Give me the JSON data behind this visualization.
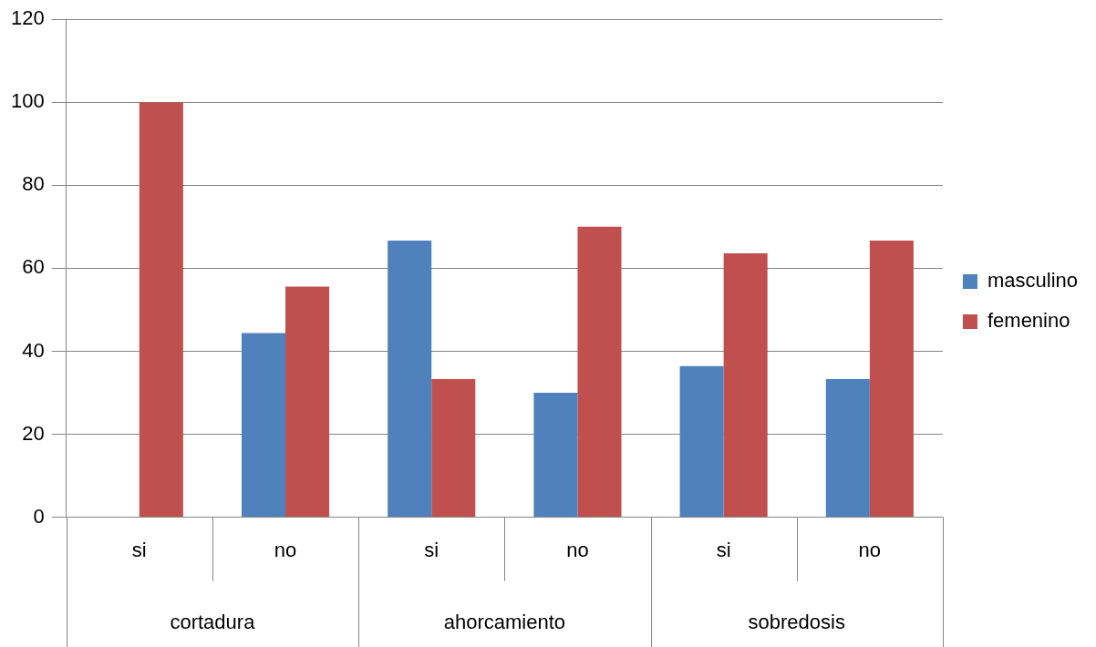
{
  "chart_data": {
    "type": "bar",
    "categories": [
      "si",
      "no",
      "si",
      "no",
      "si",
      "no"
    ],
    "series": [
      {
        "name": "masculino",
        "color": "#4f81bd",
        "values": [
          0,
          44.4,
          66.7,
          30,
          36.4,
          33.3
        ]
      },
      {
        "name": "femenino",
        "color": "#c0504d",
        "values": [
          100,
          55.6,
          33.3,
          70,
          63.6,
          66.7
        ]
      }
    ],
    "annotations": [
      "cortadura",
      "ahorcamiento",
      "sobredosis"
    ],
    "ylim": [
      0,
      120
    ],
    "yticks": [
      0,
      20,
      40,
      60,
      80,
      100,
      120
    ],
    "grid": "y",
    "legend": "right"
  }
}
